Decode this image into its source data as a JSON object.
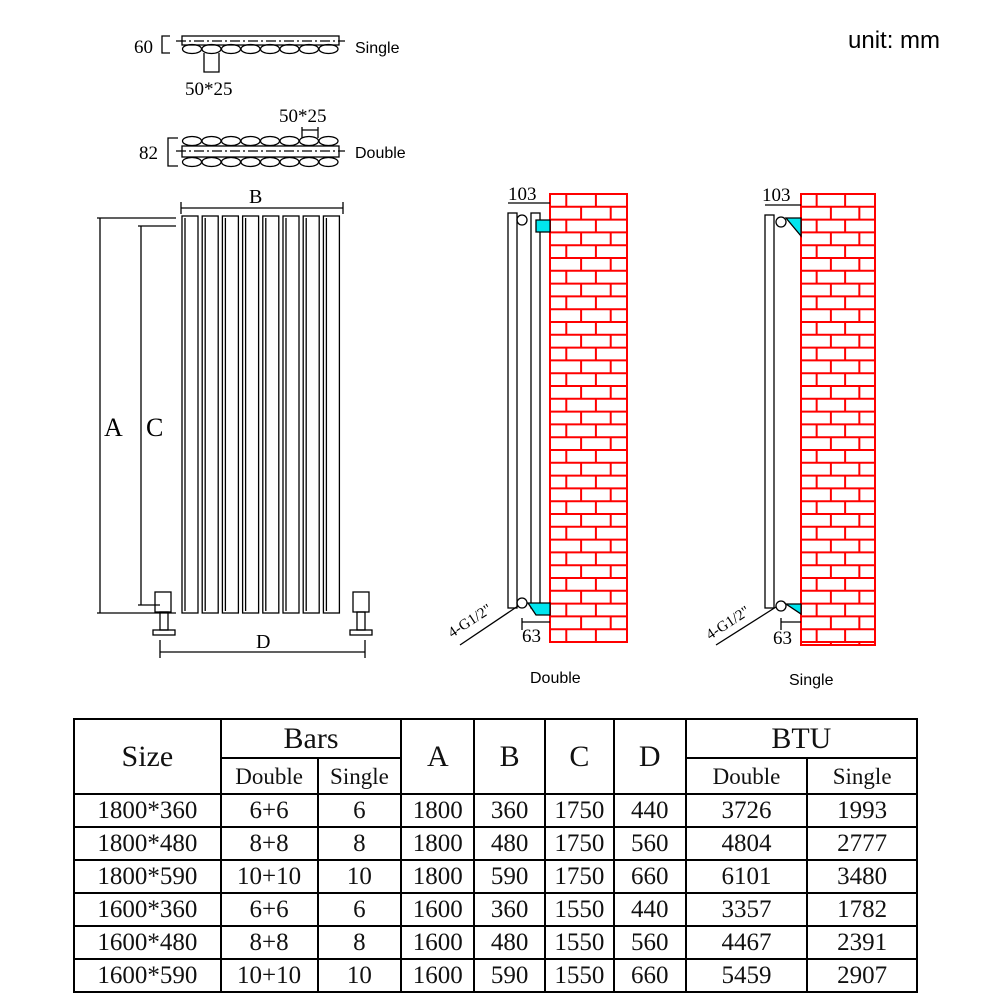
{
  "unit_label": "unit: mm",
  "cross_section": {
    "single": {
      "label": "Single",
      "depth": "60",
      "bar_size": "50*25"
    },
    "double": {
      "label": "Double",
      "depth": "82",
      "bar_size": "50*25"
    }
  },
  "front_view": {
    "label_a": "A",
    "label_b": "B",
    "label_c": "C",
    "label_d": "D"
  },
  "side_view_double": {
    "label": "Double",
    "top_offset": "103",
    "bottom_offset": "63",
    "connection": "4-G1/2\""
  },
  "side_view_single": {
    "label": "Single",
    "top_offset": "103",
    "bottom_offset": "63",
    "connection": "4-G1/2\""
  },
  "colors": {
    "brick": "#ff0000",
    "bracket": "#00e5ee",
    "line": "#000000"
  },
  "table": {
    "headers": {
      "size": "Size",
      "bars": "Bars",
      "a": "A",
      "b": "B",
      "c": "C",
      "d": "D",
      "btu": "BTU",
      "bars_double": "Double",
      "bars_single": "Single",
      "btu_double": "Double",
      "btu_single": "Single"
    },
    "rows": [
      [
        "1800*360",
        "6+6",
        "6",
        "1800",
        "360",
        "1750",
        "440",
        "3726",
        "1993"
      ],
      [
        "1800*480",
        "8+8",
        "8",
        "1800",
        "480",
        "1750",
        "560",
        "4804",
        "2777"
      ],
      [
        "1800*590",
        "10+10",
        "10",
        "1800",
        "590",
        "1750",
        "660",
        "6101",
        "3480"
      ],
      [
        "1600*360",
        "6+6",
        "6",
        "1600",
        "360",
        "1550",
        "440",
        "3357",
        "1782"
      ],
      [
        "1600*480",
        "8+8",
        "8",
        "1600",
        "480",
        "1550",
        "560",
        "4467",
        "2391"
      ],
      [
        "1600*590",
        "10+10",
        "10",
        "1600",
        "590",
        "1550",
        "660",
        "5459",
        "2907"
      ]
    ]
  }
}
